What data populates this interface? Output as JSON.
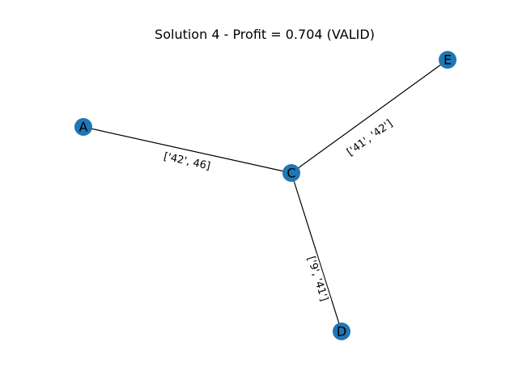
{
  "title": "Solution 4 - Profit = 0.704 (VALID)",
  "colors": {
    "node_fill": "#1f77b4",
    "edge": "#000000",
    "background": "#ffffff"
  },
  "nodes": [
    {
      "id": "A",
      "label": "A"
    },
    {
      "id": "C",
      "label": "C"
    },
    {
      "id": "D",
      "label": "D"
    },
    {
      "id": "E",
      "label": "E"
    }
  ],
  "edges": [
    {
      "source": "A",
      "target": "C",
      "label": "['42', 46]"
    },
    {
      "source": "C",
      "target": "E",
      "label": "['41', '42']"
    },
    {
      "source": "C",
      "target": "D",
      "label": "['9', '41']"
    }
  ]
}
